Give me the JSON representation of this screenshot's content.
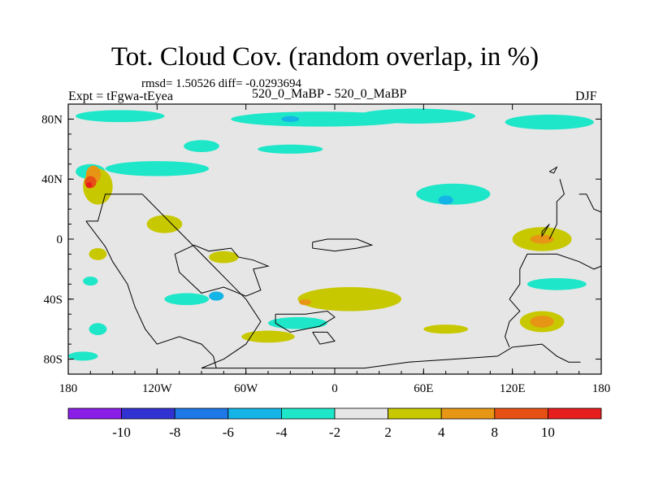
{
  "title": "Tot. Cloud Cov. (random overlap, in %)",
  "stats_line": "rmsd= 1.50526 diff= -0.0293694",
  "left_label": "Expt = tFgwa-tEyea",
  "center_label": "520_0_MaBP - 520_0_MaBP",
  "right_label": "DJF",
  "chart_data": {
    "type": "heatmap",
    "title": "Tot. Cloud Cov. (random overlap, in %)",
    "xlim": [
      -180,
      180
    ],
    "ylim": [
      -90,
      90
    ],
    "x_ticks": [
      {
        "value": -180,
        "label": "180"
      },
      {
        "value": -120,
        "label": "120W"
      },
      {
        "value": -60,
        "label": "60W"
      },
      {
        "value": 0,
        "label": "0"
      },
      {
        "value": 60,
        "label": "60E"
      },
      {
        "value": 120,
        "label": "120E"
      },
      {
        "value": 180,
        "label": "180"
      }
    ],
    "y_ticks": [
      {
        "value": 80,
        "label": "80N"
      },
      {
        "value": 40,
        "label": "40N"
      },
      {
        "value": 0,
        "label": "0"
      },
      {
        "value": -40,
        "label": "40S"
      },
      {
        "value": -80,
        "label": "80S"
      }
    ],
    "colorbar": {
      "colors": [
        "#8a1ee6",
        "#3232d2",
        "#1e78e6",
        "#14b4e6",
        "#1ee6c8",
        "#e6e6e6",
        "#c8c800",
        "#e69614",
        "#e65014",
        "#e61e1e"
      ],
      "labels": [
        "-10",
        "-8",
        "-6",
        "-4",
        "-2",
        "2",
        "4",
        "8",
        "10"
      ]
    },
    "regions": [
      {
        "level": 4,
        "center": [
          -10,
          80
        ],
        "radius": [
          60,
          5
        ]
      },
      {
        "level": 4,
        "center": [
          -145,
          82
        ],
        "radius": [
          30,
          4
        ]
      },
      {
        "level": 4,
        "center": [
          55,
          82
        ],
        "radius": [
          40,
          5
        ]
      },
      {
        "level": 4,
        "center": [
          145,
          78
        ],
        "radius": [
          30,
          5
        ]
      },
      {
        "level": 3,
        "center": [
          -30,
          80
        ],
        "radius": [
          6,
          2
        ]
      },
      {
        "level": 4,
        "center": [
          -120,
          47
        ],
        "radius": [
          35,
          5
        ]
      },
      {
        "level": 4,
        "center": [
          -165,
          45
        ],
        "radius": [
          10,
          5
        ]
      },
      {
        "level": 4,
        "center": [
          80,
          30
        ],
        "radius": [
          25,
          7
        ]
      },
      {
        "level": 3,
        "center": [
          75,
          26
        ],
        "radius": [
          5,
          3
        ]
      },
      {
        "level": 4,
        "center": [
          -30,
          60
        ],
        "radius": [
          22,
          3
        ]
      },
      {
        "level": 4,
        "center": [
          -90,
          62
        ],
        "radius": [
          12,
          4
        ]
      },
      {
        "level": 4,
        "center": [
          -165,
          -28
        ],
        "radius": [
          5,
          3
        ]
      },
      {
        "level": 4,
        "center": [
          -100,
          -40
        ],
        "radius": [
          15,
          4
        ]
      },
      {
        "level": 3,
        "center": [
          -80,
          -38
        ],
        "radius": [
          5,
          3
        ]
      },
      {
        "level": 4,
        "center": [
          -25,
          -56
        ],
        "radius": [
          20,
          4
        ]
      },
      {
        "level": 4,
        "center": [
          -170,
          -78
        ],
        "radius": [
          10,
          3
        ]
      },
      {
        "level": 4,
        "center": [
          150,
          -30
        ],
        "radius": [
          20,
          4
        ]
      },
      {
        "level": 4,
        "center": [
          -160,
          -60
        ],
        "radius": [
          6,
          4
        ]
      },
      {
        "level": 6,
        "center": [
          10,
          -40
        ],
        "radius": [
          35,
          8
        ]
      },
      {
        "level": 6,
        "center": [
          0,
          -42
        ],
        "radius": [
          15,
          5
        ]
      },
      {
        "level": 6,
        "center": [
          140,
          0
        ],
        "radius": [
          20,
          8
        ]
      },
      {
        "level": 6,
        "center": [
          140,
          -55
        ],
        "radius": [
          15,
          7
        ]
      },
      {
        "level": 6,
        "center": [
          -115,
          10
        ],
        "radius": [
          12,
          6
        ]
      },
      {
        "level": 6,
        "center": [
          -160,
          35
        ],
        "radius": [
          10,
          12
        ]
      },
      {
        "level": 6,
        "center": [
          -75,
          -12
        ],
        "radius": [
          10,
          4
        ]
      },
      {
        "level": 6,
        "center": [
          75,
          -60
        ],
        "radius": [
          15,
          3
        ]
      },
      {
        "level": 6,
        "center": [
          -45,
          -65
        ],
        "radius": [
          18,
          4
        ]
      },
      {
        "level": 6,
        "center": [
          -160,
          -10
        ],
        "radius": [
          6,
          4
        ]
      },
      {
        "level": 7,
        "center": [
          140,
          0
        ],
        "radius": [
          8,
          3
        ]
      },
      {
        "level": 7,
        "center": [
          140,
          -55
        ],
        "radius": [
          8,
          4
        ]
      },
      {
        "level": 7,
        "center": [
          -20,
          -42
        ],
        "radius": [
          4,
          2
        ]
      },
      {
        "level": 7,
        "center": [
          -163,
          43
        ],
        "radius": [
          5,
          6
        ]
      },
      {
        "level": 8,
        "center": [
          -165,
          38
        ],
        "radius": [
          4,
          4
        ]
      },
      {
        "level": 9,
        "center": [
          -166,
          36
        ],
        "radius": [
          2,
          2
        ]
      }
    ],
    "coastlines": [
      [
        [
          -168,
          12
        ],
        [
          -160,
          12
        ],
        [
          -155,
          30
        ],
        [
          -130,
          30
        ],
        [
          -125,
          25
        ],
        [
          -110,
          10
        ],
        [
          -100,
          0
        ],
        [
          -90,
          -10
        ],
        [
          -80,
          -20
        ],
        [
          -70,
          -30
        ],
        [
          -60,
          -40
        ],
        [
          -50,
          -55
        ],
        [
          -60,
          -70
        ],
        [
          -75,
          -80
        ],
        [
          -90,
          -86
        ]
      ],
      [
        [
          -168,
          12
        ],
        [
          -155,
          -5
        ],
        [
          -150,
          -15
        ],
        [
          -140,
          -30
        ],
        [
          -135,
          -45
        ],
        [
          -128,
          -60
        ],
        [
          -120,
          -70
        ],
        [
          -105,
          -65
        ],
        [
          -90,
          -70
        ],
        [
          -82,
          -78
        ],
        [
          -80,
          -86
        ]
      ],
      [
        [
          -108,
          -10
        ],
        [
          -95,
          -4
        ],
        [
          -85,
          -8
        ],
        [
          -70,
          -6
        ],
        [
          -65,
          -12
        ],
        [
          -55,
          -14
        ],
        [
          -45,
          -18
        ],
        [
          -55,
          -20
        ],
        [
          -50,
          -34
        ],
        [
          -60,
          -38
        ],
        [
          -75,
          -32
        ],
        [
          -90,
          -36
        ],
        [
          -105,
          -22
        ],
        [
          -108,
          -10
        ]
      ],
      [
        [
          -15,
          -2
        ],
        [
          -5,
          0
        ],
        [
          15,
          0
        ],
        [
          25,
          -4
        ],
        [
          15,
          -6
        ],
        [
          0,
          -8
        ],
        [
          -15,
          -6
        ],
        [
          -15,
          -2
        ]
      ],
      [
        [
          -40,
          -50
        ],
        [
          -20,
          -50
        ],
        [
          -5,
          -48
        ],
        [
          0,
          -52
        ],
        [
          -10,
          -58
        ],
        [
          -30,
          -62
        ],
        [
          -40,
          -56
        ],
        [
          -40,
          -50
        ]
      ],
      [
        [
          -15,
          -62
        ],
        [
          -5,
          -62
        ],
        [
          0,
          -68
        ],
        [
          -10,
          -70
        ],
        [
          -15,
          -62
        ]
      ],
      [
        [
          -90,
          -86
        ],
        [
          -40,
          -86
        ],
        [
          20,
          -86
        ],
        [
          50,
          -82
        ],
        [
          80,
          -80
        ],
        [
          110,
          -78
        ],
        [
          120,
          -72
        ],
        [
          140,
          -70
        ],
        [
          150,
          -78
        ],
        [
          158,
          -82
        ],
        [
          166,
          -82
        ]
      ],
      [
        [
          118,
          -40
        ],
        [
          125,
          -30
        ],
        [
          125,
          -20
        ],
        [
          130,
          -10
        ],
        [
          150,
          -10
        ],
        [
          165,
          -15
        ],
        [
          175,
          -20
        ],
        [
          180,
          -18
        ]
      ],
      [
        [
          118,
          -40
        ],
        [
          125,
          -48
        ],
        [
          118,
          -55
        ],
        [
          115,
          -65
        ],
        [
          118,
          -72
        ]
      ],
      [
        [
          145,
          0
        ],
        [
          150,
          10
        ],
        [
          150,
          25
        ],
        [
          155,
          30
        ],
        [
          152,
          40
        ]
      ],
      [
        [
          140,
          5
        ],
        [
          145,
          10
        ],
        [
          140,
          2
        ],
        [
          140,
          5
        ]
      ],
      [
        [
          145,
          45
        ],
        [
          150,
          48
        ],
        [
          148,
          44
        ],
        [
          145,
          45
        ]
      ],
      [
        [
          165,
          30
        ],
        [
          170,
          30
        ],
        [
          175,
          20
        ],
        [
          180,
          18
        ]
      ]
    ]
  }
}
